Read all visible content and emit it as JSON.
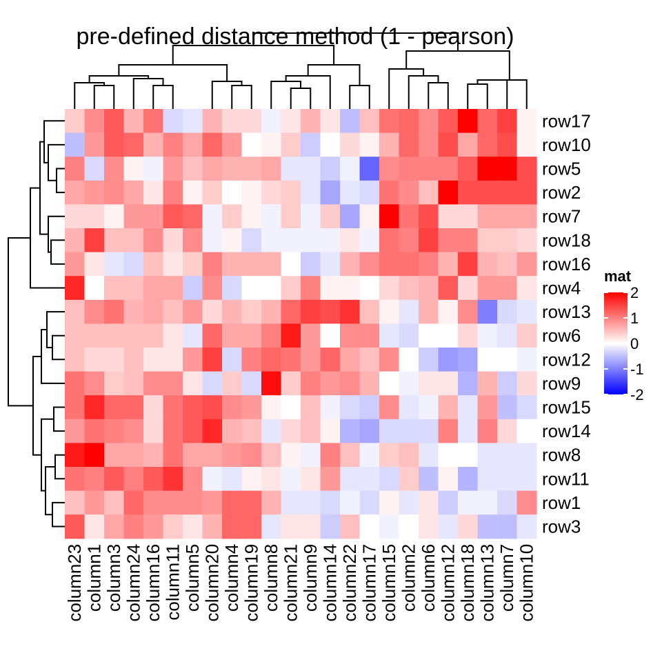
{
  "chart_data": {
    "type": "heatmap",
    "title": "pre-defined distance method (1 - pearson)",
    "columns": [
      "column23",
      "column1",
      "column3",
      "column24",
      "column16",
      "column11",
      "column5",
      "column20",
      "column4",
      "column19",
      "column8",
      "column21",
      "column9",
      "column14",
      "column22",
      "column17",
      "column15",
      "column2",
      "column6",
      "column12",
      "column18",
      "column13",
      "column7",
      "column10"
    ],
    "rows": [
      "row17",
      "row10",
      "row5",
      "row2",
      "row7",
      "row18",
      "row16",
      "row4",
      "row13",
      "row6",
      "row12",
      "row9",
      "row15",
      "row14",
      "row8",
      "row11",
      "row1",
      "row3"
    ],
    "values": [
      [
        0.4,
        0.9,
        1.3,
        0.6,
        1.1,
        -0.3,
        -0.2,
        0.6,
        0.3,
        0.3,
        -0.1,
        0.2,
        0.6,
        0.2,
        -0.5,
        0.5,
        1.1,
        1.2,
        0.9,
        1.3,
        2.0,
        1.2,
        1.5,
        0.1
      ],
      [
        -0.5,
        0.8,
        1.3,
        1.2,
        0.6,
        1.0,
        0.7,
        1.2,
        0.8,
        0.0,
        0.1,
        0.4,
        -0.4,
        0.0,
        0.3,
        0.1,
        0.6,
        1.2,
        0.9,
        1.4,
        0.7,
        1.2,
        1.4,
        0.1
      ],
      [
        1.0,
        -0.3,
        0.9,
        0.1,
        -0.1,
        0.8,
        0.5,
        0.7,
        0.6,
        0.6,
        0.7,
        -0.2,
        -0.2,
        -0.4,
        -0.1,
        -1.2,
        0.9,
        1.0,
        1.0,
        1.0,
        1.3,
        2.0,
        2.3,
        1.4
      ],
      [
        0.7,
        0.8,
        0.9,
        0.7,
        0.2,
        1.0,
        0.1,
        0.4,
        0.0,
        0.1,
        0.3,
        0.4,
        -0.2,
        -0.7,
        -0.2,
        -0.3,
        1.1,
        0.9,
        0.5,
        2.2,
        1.4,
        1.4,
        1.4,
        1.4
      ],
      [
        0.3,
        0.3,
        0.1,
        0.8,
        0.8,
        1.3,
        1.2,
        -0.1,
        0.4,
        0.1,
        -0.1,
        0.4,
        -0.1,
        0.4,
        -0.7,
        0.1,
        2.2,
        1.1,
        1.4,
        0.3,
        0.3,
        0.7,
        0.7,
        0.7
      ],
      [
        0.6,
        1.5,
        0.5,
        0.5,
        0.9,
        0.3,
        0.9,
        -0.1,
        0.1,
        -0.3,
        -0.1,
        -0.1,
        -0.1,
        -0.1,
        0.2,
        -0.1,
        1.1,
        1.0,
        1.5,
        1.0,
        1.0,
        0.4,
        0.4,
        0.3
      ],
      [
        0.8,
        0.2,
        -0.2,
        -0.3,
        0.5,
        0.2,
        0.4,
        1.0,
        0.6,
        0.6,
        0.6,
        0.0,
        -0.4,
        -0.2,
        0.6,
        0.9,
        1.1,
        1.1,
        1.0,
        0.6,
        1.5,
        0.6,
        0.5,
        0.8
      ],
      [
        1.7,
        0.0,
        0.5,
        0.5,
        0.7,
        0.7,
        -0.4,
        0.9,
        -0.3,
        0.0,
        0.0,
        0.4,
        1.0,
        0.1,
        0.1,
        0.0,
        0.3,
        0.5,
        0.6,
        1.3,
        0.3,
        0.8,
        0.8,
        0.2
      ],
      [
        0.5,
        0.9,
        1.1,
        0.6,
        0.7,
        0.5,
        0.8,
        0.3,
        0.6,
        0.4,
        0.6,
        1.2,
        1.5,
        1.4,
        1.6,
        0.5,
        0.1,
        -0.2,
        0.6,
        0.1,
        0.9,
        -1.0,
        -0.3,
        -0.2
      ],
      [
        0.5,
        0.5,
        0.5,
        0.5,
        0.5,
        0.2,
        -0.2,
        1.2,
        0.7,
        0.7,
        1.0,
        1.8,
        0.8,
        0.0,
        0.9,
        0.9,
        -0.2,
        -0.3,
        0.0,
        0.0,
        0.3,
        -0.1,
        -0.2,
        0.4
      ],
      [
        0.5,
        0.3,
        0.3,
        0.5,
        0.2,
        0.2,
        0.8,
        1.5,
        -0.3,
        1.0,
        1.2,
        1.1,
        0.8,
        1.2,
        0.7,
        0.5,
        0.9,
        0.0,
        -0.4,
        -0.8,
        -0.7,
        0.0,
        0.0,
        -0.1
      ],
      [
        1.1,
        0.9,
        0.4,
        0.5,
        0.9,
        0.9,
        0.2,
        -0.3,
        0.4,
        -0.3,
        1.9,
        0.4,
        1.0,
        0.8,
        0.9,
        0.6,
        0.0,
        -0.1,
        0.2,
        0.2,
        -0.6,
        0.6,
        -0.4,
        0.3
      ],
      [
        1.1,
        1.7,
        1.2,
        1.2,
        0.3,
        1.1,
        1.3,
        1.4,
        0.9,
        0.8,
        0.1,
        0.0,
        0.5,
        -0.1,
        -0.3,
        -0.4,
        0.9,
        -0.2,
        -0.1,
        0.6,
        -0.2,
        0.8,
        -0.5,
        -0.3
      ],
      [
        0.8,
        1.1,
        1.0,
        0.9,
        0.3,
        1.1,
        1.3,
        1.7,
        0.6,
        0.5,
        -0.2,
        0.3,
        0.5,
        0.1,
        -0.6,
        -0.7,
        -0.3,
        -0.3,
        -0.3,
        1.0,
        -0.2,
        1.0,
        0.3,
        0.0
      ],
      [
        1.8,
        2.4,
        0.7,
        0.7,
        0.6,
        1.1,
        0.7,
        0.7,
        0.8,
        0.9,
        0.5,
        0.1,
        -0.1,
        1.0,
        0.5,
        -0.1,
        0.4,
        0.5,
        -0.2,
        0.0,
        0.0,
        -0.2,
        -0.2,
        -0.2
      ],
      [
        1.1,
        1.0,
        1.3,
        1.0,
        1.3,
        1.6,
        0.9,
        -0.1,
        -0.2,
        0.1,
        0.2,
        -0.1,
        0.2,
        0.8,
        -0.2,
        -0.2,
        -0.3,
        0.4,
        -0.5,
        0.1,
        -0.6,
        -0.2,
        -0.2,
        -0.2
      ],
      [
        0.5,
        0.8,
        0.5,
        1.2,
        0.9,
        0.9,
        0.9,
        0.8,
        1.2,
        1.2,
        0.6,
        -0.2,
        -0.2,
        -0.3,
        -0.1,
        -0.3,
        0.1,
        -0.2,
        0.2,
        -0.4,
        -0.1,
        -0.1,
        -0.3,
        0.9
      ],
      [
        1.3,
        0.2,
        0.7,
        1.0,
        0.8,
        0.4,
        0.2,
        0.6,
        1.2,
        1.2,
        -0.2,
        0.2,
        0.2,
        -0.4,
        0.5,
        0.0,
        -0.1,
        0.0,
        0.2,
        -0.2,
        0.3,
        -0.5,
        -0.5,
        -0.2
      ]
    ],
    "legend": {
      "title": "mat",
      "ticks": [
        "2",
        "1",
        "0",
        "-1",
        "-2"
      ],
      "tick_values": [
        2,
        1,
        0,
        -1,
        -2
      ],
      "placement": "right"
    },
    "color_scale": {
      "low": "#0000ff",
      "mid": "#ffffff",
      "high": "#ff0000",
      "domain": [
        -2,
        0,
        2
      ]
    },
    "row_dendrogram": [
      [
        0,
        1
      ],
      [
        -1,
        -2
      ],
      [
        2,
        3
      ],
      [
        -3,
        -4
      ],
      [
        -5,
        5
      ],
      [
        4,
        6
      ],
      [
        7,
        8
      ],
      [
        -6,
        -7
      ],
      [
        -8,
        9
      ],
      [
        10,
        11
      ],
      [
        -9,
        -10
      ],
      [
        -11,
        -12
      ],
      [
        13,
        14
      ],
      [
        -14,
        -15
      ],
      [
        -16,
        -17
      ],
      [
        16,
        17
      ],
      [
        -13,
        18
      ],
      [
        -18,
        19
      ],
      [
        15,
        20
      ],
      [
        12,
        21
      ],
      [
        22,
        23
      ],
      [
        1,
        2
      ],
      [
        0,
        0
      ],
      [
        0,
        0
      ]
    ],
    "row_dendrogram_note": "",
    "col_dendrogram": []
  }
}
